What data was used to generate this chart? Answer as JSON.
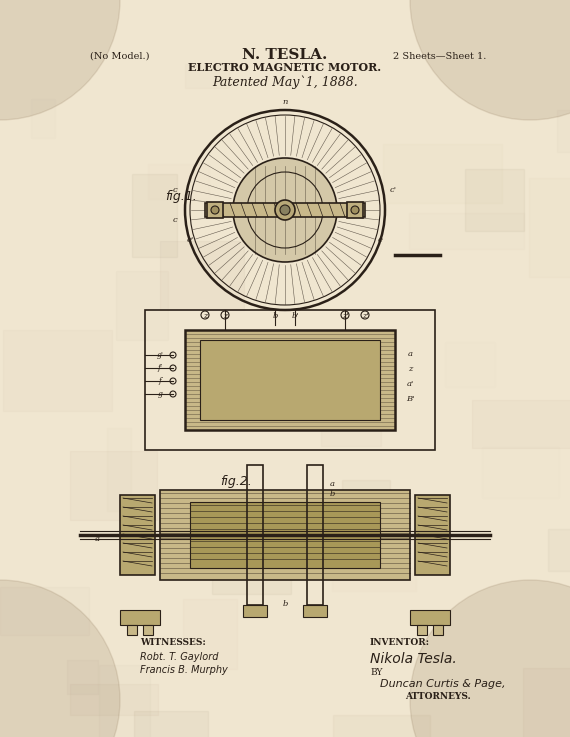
{
  "bg_color": "#e8dcc8",
  "paper_color": "#f0e6d0",
  "ink_color": "#2a2018",
  "title_line1": "N. TESLA.",
  "title_line2": "ELECTRO MAGNETIC MOTOR.",
  "title_line3": "Patented May`1, 1888.",
  "header_left": "(No Model.)",
  "header_right": "2 Sheets—Sheet 1.",
  "fig1_label": "fig.1.",
  "fig2_label": "fig.2.",
  "witnesses_label": "WITNESSES:",
  "witness1": "Robt. T. Gaylord",
  "witness2": "Francis B. Murphy",
  "inventor_label": "INVENTOR:",
  "inventor_name": "Nikola Tesla.",
  "by_label": "BY",
  "attorney_name": "Duncan Curtis & Page,",
  "attorneys_label": "ATTORNEYS."
}
